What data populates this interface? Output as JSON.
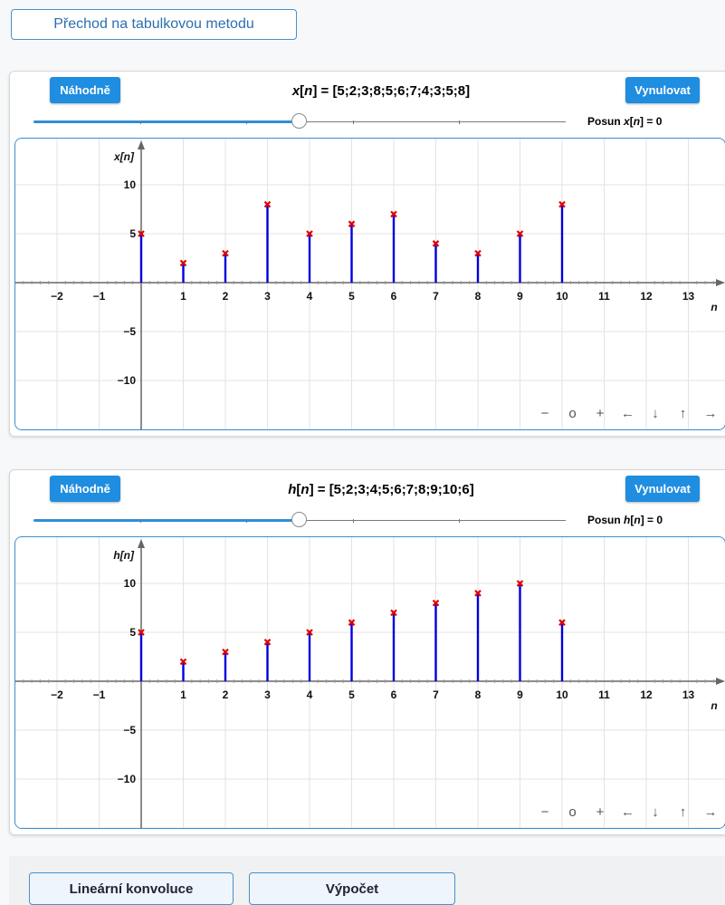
{
  "top_button": {
    "label": "Přechod na tabulkovou metodu"
  },
  "panels": [
    {
      "id": "x",
      "random_label": "Náhodně",
      "reset_label": "Vynulovat",
      "title_name": "x",
      "title_var": "n",
      "title_values": "[5;2;3;8;5;6;7;4;3;5;8]",
      "shift_prefix": "Posun ",
      "shift_name": "x",
      "shift_var": "n",
      "shift_value": "0",
      "slider_fraction": 0.5,
      "y_axis_label": "x[n]",
      "x_axis_label": "n",
      "x_ticks": [
        "−2",
        "−1",
        "",
        "1",
        "2",
        "3",
        "4",
        "5",
        "6",
        "7",
        "8",
        "9",
        "10",
        "11",
        "12",
        "13"
      ],
      "y_ticks": [
        "10",
        "5",
        "−5",
        "−10"
      ],
      "stem_n": [
        0,
        1,
        2,
        3,
        4,
        5,
        6,
        7,
        8,
        9,
        10
      ],
      "stem_values": [
        5,
        2,
        3,
        8,
        5,
        6,
        7,
        4,
        3,
        5,
        8
      ],
      "controls": [
        "−",
        "o",
        "+",
        "←",
        "↓",
        "↑",
        "→"
      ]
    },
    {
      "id": "h",
      "random_label": "Náhodně",
      "reset_label": "Vynulovat",
      "title_name": "h",
      "title_var": "n",
      "title_values": "[5;2;3;4;5;6;7;8;9;10;6]",
      "shift_prefix": "Posun ",
      "shift_name": "h",
      "shift_var": "n",
      "shift_value": "0",
      "slider_fraction": 0.5,
      "y_axis_label": "h[n]",
      "x_axis_label": "n",
      "x_ticks": [
        "−2",
        "−1",
        "",
        "1",
        "2",
        "3",
        "4",
        "5",
        "6",
        "7",
        "8",
        "9",
        "10",
        "11",
        "12",
        "13"
      ],
      "y_ticks": [
        "10",
        "5",
        "−5",
        "−10"
      ],
      "stem_n": [
        0,
        1,
        2,
        3,
        4,
        5,
        6,
        7,
        8,
        9,
        10
      ],
      "stem_values": [
        5,
        2,
        3,
        4,
        5,
        6,
        7,
        8,
        9,
        10,
        6
      ],
      "controls": [
        "−",
        "o",
        "+",
        "←",
        "↓",
        "↑",
        "→"
      ]
    }
  ],
  "colors": {
    "accent": "#1f8de0",
    "stem": "#0000dd",
    "marker": "#e00000",
    "grid": "#e3e3e3",
    "axis": "#666666"
  },
  "bottom": {
    "conv_label": "Lineární konvoluce",
    "calc_label": "Výpočet"
  }
}
